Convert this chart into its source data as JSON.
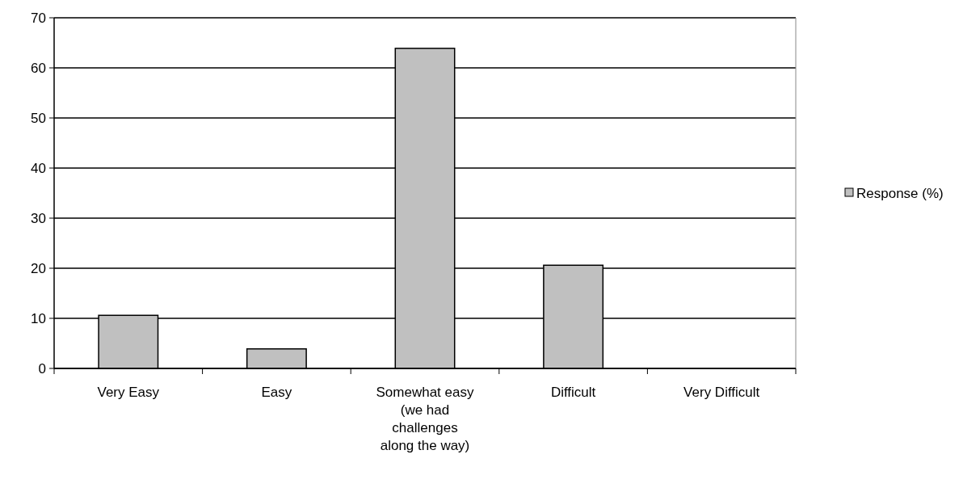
{
  "chart_data": {
    "type": "bar",
    "categories": [
      "Very Easy",
      "Easy",
      "Somewhat easy (we had challenges along the way)",
      "Difficult",
      "Very Difficult"
    ],
    "series": [
      {
        "name": "Response (%)",
        "color": "#c0c0c0",
        "values": [
          10.6,
          3.9,
          63.9,
          20.6,
          0
        ]
      }
    ],
    "ylim": [
      0,
      70
    ],
    "yticks": [
      0,
      10,
      20,
      30,
      40,
      50,
      60,
      70
    ],
    "grid": "y",
    "legend": "right"
  }
}
